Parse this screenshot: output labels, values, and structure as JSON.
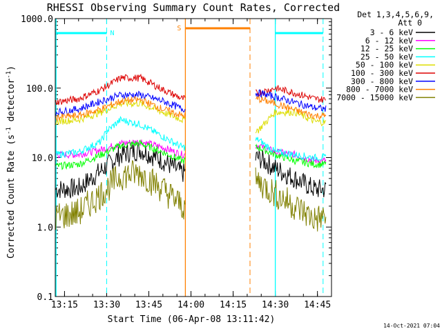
{
  "chart_data": {
    "type": "line",
    "title": "RHESSI Observing Summary Count Rates, Corrected",
    "xlabel": "Start Time (06-Apr-08 13:11:42)",
    "ylabel_main": "Corrected Count Rate (s",
    "ylabel_sup1": "-1",
    "ylabel_mid": " detector",
    "ylabel_sup2": "-1",
    "ylabel_end": ")",
    "y_scale": "log",
    "ylim": [
      0.1,
      1000
    ],
    "xlim_minutes": [
      "13:11:42",
      "14:50:00"
    ],
    "y_ticks": [
      "1000.0",
      "100.0",
      "10.0",
      "1.0",
      "0.1"
    ],
    "x_ticks": [
      "13:15",
      "13:30",
      "13:45",
      "14:00",
      "14:15",
      "14:30",
      "14:45"
    ],
    "legend_header": [
      "Det 1,3,4,5,6,9,",
      "Att 0"
    ],
    "legend_position": "right",
    "gap": [
      "13:58",
      "14:23"
    ],
    "series": [
      {
        "name": "3 - 6 keV",
        "color": "#000000",
        "x": [
          "13:12",
          "13:20",
          "13:28",
          "13:35",
          "13:42",
          "13:50",
          "13:57",
          "14:24",
          "14:30",
          "14:37",
          "14:44",
          "14:48"
        ],
        "values": [
          3.5,
          3.6,
          6.5,
          11,
          13,
          9,
          6,
          10,
          7,
          5,
          3.5,
          3.5
        ]
      },
      {
        "name": "6 - 12 keV",
        "color": "#ff00ff",
        "x": [
          "13:12",
          "13:20",
          "13:28",
          "13:35",
          "13:42",
          "13:50",
          "13:57",
          "14:24",
          "14:30",
          "14:37",
          "14:44",
          "14:48"
        ],
        "values": [
          11,
          11,
          13,
          16,
          17,
          14,
          11,
          15,
          12,
          11,
          9,
          9
        ]
      },
      {
        "name": "12 - 25 keV",
        "color": "#00ff00",
        "x": [
          "13:12",
          "13:20",
          "13:28",
          "13:35",
          "13:42",
          "13:50",
          "13:57",
          "14:24",
          "14:30",
          "14:37",
          "14:44",
          "14:48"
        ],
        "values": [
          7.5,
          8,
          11,
          15,
          16,
          12,
          9,
          14,
          11,
          9,
          8,
          8
        ]
      },
      {
        "name": "25 - 50 keV",
        "color": "#00ffff",
        "x": [
          "13:12",
          "13:20",
          "13:28",
          "13:30",
          "13:35",
          "13:42",
          "13:50",
          "13:57",
          "14:24",
          "14:30",
          "14:37",
          "14:44",
          "14:48"
        ],
        "values": [
          11,
          12,
          17,
          24,
          35,
          30,
          20,
          14,
          18,
          12,
          11,
          10,
          10
        ]
      },
      {
        "name": "50 - 100 keV",
        "color": "#dddd00",
        "x": [
          "13:12",
          "13:20",
          "13:28",
          "13:35",
          "13:42",
          "13:50",
          "13:57",
          "14:24",
          "14:30",
          "14:37",
          "14:44",
          "14:48"
        ],
        "values": [
          33,
          35,
          45,
          60,
          60,
          45,
          35,
          25,
          45,
          45,
          33,
          32
        ]
      },
      {
        "name": "100 - 300 keV",
        "color": "#dd0000",
        "x": [
          "13:12",
          "13:20",
          "13:28",
          "13:35",
          "13:42",
          "13:50",
          "13:57",
          "14:24",
          "14:30",
          "14:37",
          "14:44",
          "14:48"
        ],
        "values": [
          63,
          70,
          95,
          140,
          140,
          95,
          70,
          85,
          100,
          85,
          70,
          68
        ]
      },
      {
        "name": "300 - 800 keV",
        "color": "#0000ff",
        "x": [
          "13:12",
          "13:20",
          "13:28",
          "13:35",
          "13:42",
          "13:50",
          "13:57",
          "14:24",
          "14:30",
          "14:37",
          "14:44",
          "14:48"
        ],
        "values": [
          45,
          50,
          65,
          80,
          80,
          65,
          50,
          85,
          75,
          62,
          52,
          50
        ]
      },
      {
        "name": "800 - 7000 keV",
        "color": "#ff8000",
        "x": [
          "13:12",
          "13:20",
          "13:28",
          "13:35",
          "13:42",
          "13:50",
          "13:57",
          "14:24",
          "14:30",
          "14:37",
          "14:44",
          "14:48"
        ],
        "values": [
          38,
          40,
          50,
          65,
          68,
          50,
          40,
          70,
          60,
          48,
          40,
          40
        ]
      },
      {
        "name": "7000 - 15000 keV",
        "color": "#808000",
        "x": [
          "13:12",
          "13:20",
          "13:28",
          "13:35",
          "13:42",
          "13:50",
          "13:57",
          "14:24",
          "14:30",
          "14:37",
          "14:44",
          "14:48"
        ],
        "values": [
          1.4,
          1.6,
          3.0,
          5.5,
          6.0,
          3.5,
          2.0,
          4.5,
          3.0,
          2.0,
          1.3,
          1.4
        ]
      }
    ],
    "flags": [
      {
        "label": "N",
        "color": "#00ffff",
        "bars": [
          [
            "13:12",
            "13:30"
          ],
          [
            "14:30",
            "14:47"
          ]
        ],
        "dashes": [
          "13:30",
          "14:47"
        ],
        "solid": [
          "13:12",
          "14:30"
        ]
      },
      {
        "label": "S",
        "color": "#ff8000",
        "bars": [
          [
            "13:58",
            "14:21"
          ]
        ],
        "solid": [
          "13:58"
        ],
        "dashes": [
          "14:21"
        ]
      }
    ]
  },
  "timestamp": "14-Oct-2021 07:04"
}
